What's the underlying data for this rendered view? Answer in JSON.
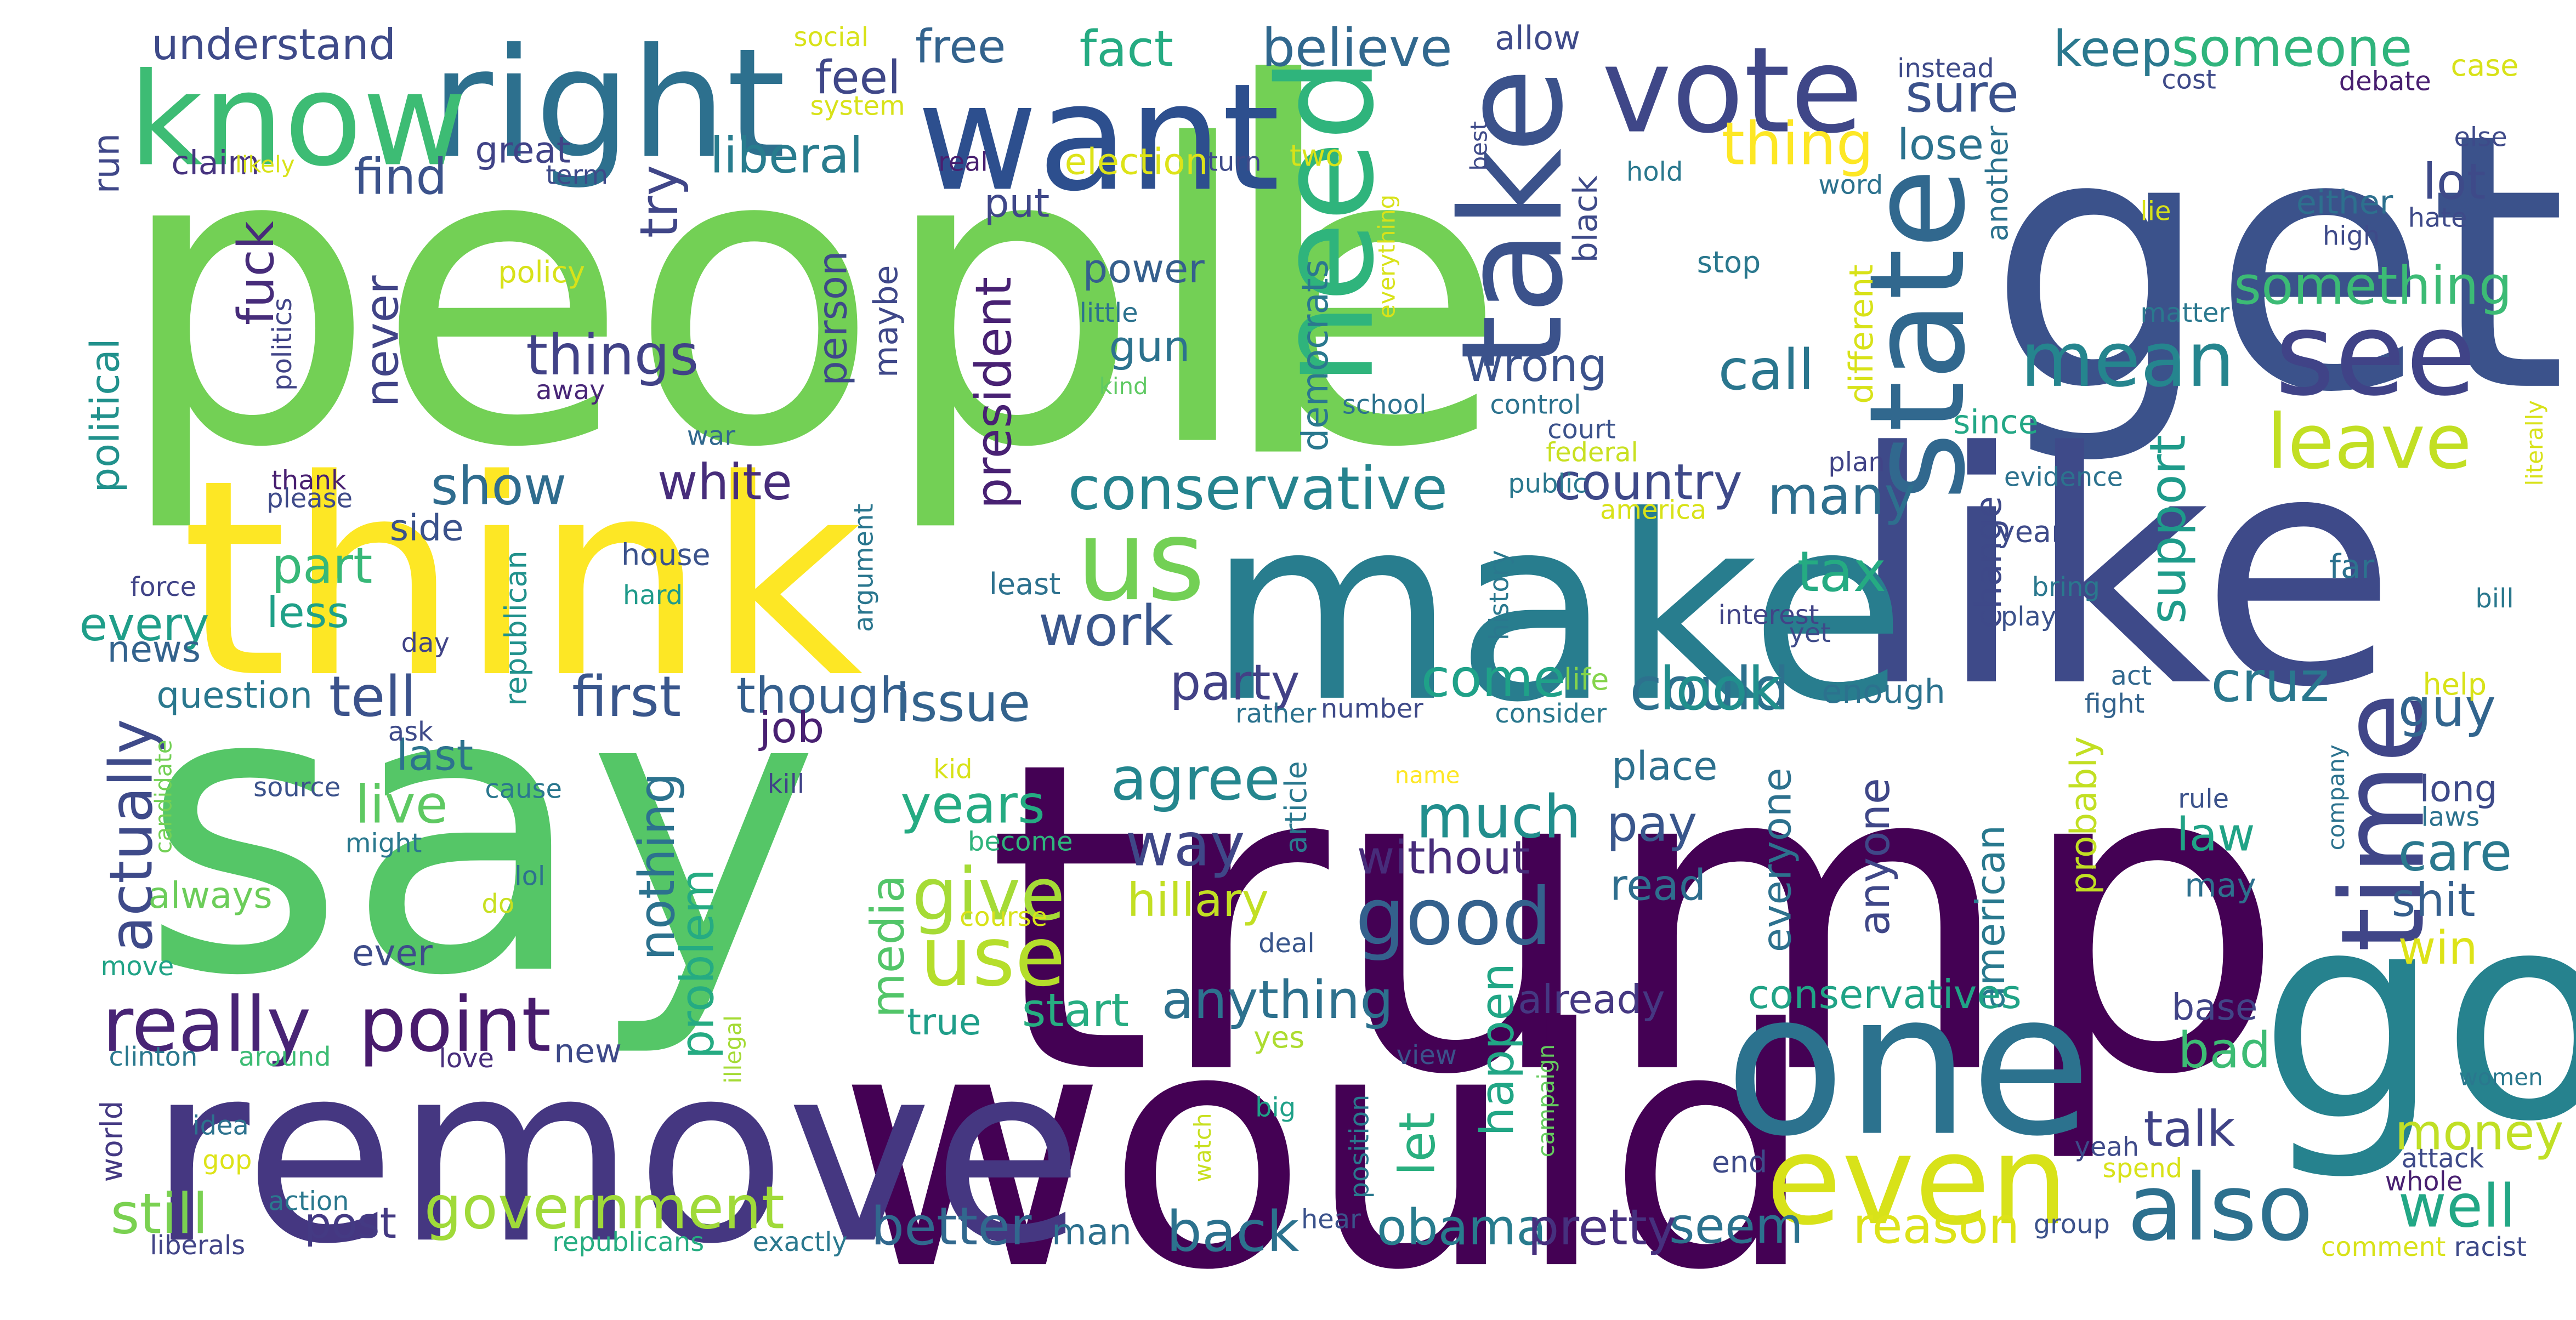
{
  "words": [
    {
      "t": "people",
      "c": "#73d055"
    },
    {
      "t": "trump",
      "c": "#440154"
    },
    {
      "t": "say",
      "c": "#55c667"
    },
    {
      "t": "get",
      "c": "#3b528b"
    },
    {
      "t": "like",
      "c": "#3e4a89"
    },
    {
      "t": "l",
      "c": "#73d055"
    },
    {
      "t": "think",
      "c": "#fde725"
    },
    {
      "t": "would",
      "c": "#440154"
    },
    {
      "t": "make",
      "c": "#287d8e"
    },
    {
      "t": "go",
      "c": "#26828e"
    },
    {
      "t": "remove",
      "c": "#453781"
    },
    {
      "t": "right",
      "c": "#2d708e"
    },
    {
      "t": "want",
      "c": "#2d4f8e"
    },
    {
      "t": "know",
      "c": "#3dbc74"
    },
    {
      "t": "one",
      "c": "#2c728e"
    },
    {
      "t": "even",
      "c": "#d8e219"
    },
    {
      "t": "vote",
      "c": "#3f4788"
    },
    {
      "t": "see",
      "c": "#404387"
    },
    {
      "t": "take",
      "c": "#3b528b"
    },
    {
      "t": "state",
      "c": "#31688e"
    },
    {
      "t": "need",
      "c": "#2fb47c"
    },
    {
      "t": "time",
      "c": "#404688"
    },
    {
      "t": "us",
      "c": "#73d055"
    },
    {
      "t": "also",
      "c": "#2d708e"
    },
    {
      "t": "use",
      "c": "#b5de2b"
    },
    {
      "t": "good",
      "c": "#34618d"
    },
    {
      "t": "mean",
      "c": "#25858e"
    },
    {
      "t": "leave",
      "c": "#c2df23"
    },
    {
      "t": "point",
      "c": "#481b6d"
    },
    {
      "t": "really",
      "c": "#482475"
    },
    {
      "t": "conservative",
      "c": "#25838e"
    },
    {
      "t": "government",
      "c": "#a0da39"
    },
    {
      "t": "obama",
      "c": "#287c8e"
    },
    {
      "t": "seem",
      "c": "#2c728e"
    },
    {
      "t": "pretty",
      "c": "#46307e"
    },
    {
      "t": "better",
      "c": "#31688e"
    },
    {
      "t": "back",
      "c": "#2c728e"
    },
    {
      "t": "reason",
      "c": "#dde318"
    },
    {
      "t": "well",
      "c": "#22a785"
    },
    {
      "t": "money",
      "c": "#c0df25"
    },
    {
      "t": "talk",
      "c": "#404387"
    },
    {
      "t": "still",
      "c": "#7ad151"
    },
    {
      "t": "post",
      "c": "#443a83"
    },
    {
      "t": "could",
      "c": "#2d718e"
    },
    {
      "t": "look",
      "c": "#218f8d"
    },
    {
      "t": "come",
      "c": "#1fa188"
    },
    {
      "t": "party",
      "c": "#424186"
    },
    {
      "t": "tell",
      "c": "#3b528b"
    },
    {
      "t": "first",
      "c": "#39568c"
    },
    {
      "t": "though",
      "c": "#355f8d"
    },
    {
      "t": "issue",
      "c": "#33638d"
    },
    {
      "t": "way",
      "c": "#3f4788"
    },
    {
      "t": "much",
      "c": "#218e8d"
    },
    {
      "t": "agree",
      "c": "#24868e"
    },
    {
      "t": "years",
      "c": "#25ab82"
    },
    {
      "t": "give",
      "c": "#a5db36"
    },
    {
      "t": "live",
      "c": "#5ec962"
    },
    {
      "t": "actually",
      "c": "#3e4a89"
    },
    {
      "t": "things",
      "c": "#414287"
    },
    {
      "t": "white",
      "c": "#472d7b"
    },
    {
      "t": "show",
      "c": "#2f6c8e"
    },
    {
      "t": "work",
      "c": "#39568c"
    },
    {
      "t": "country",
      "c": "#3e4989"
    },
    {
      "t": "many",
      "c": "#2e6f8e"
    },
    {
      "t": "tax",
      "c": "#25ab82"
    },
    {
      "t": "cruz",
      "c": "#2a788e"
    },
    {
      "t": "guy",
      "c": "#32658e"
    },
    {
      "t": "care",
      "c": "#2a788e"
    },
    {
      "t": "law",
      "c": "#20a386"
    },
    {
      "t": "shit",
      "c": "#355f8d"
    },
    {
      "t": "bad",
      "c": "#3dbc74"
    },
    {
      "t": "win",
      "c": "#dde318"
    },
    {
      "t": "something",
      "c": "#3cbb75"
    },
    {
      "t": "support",
      "c": "#1e9b8a"
    },
    {
      "t": "call",
      "c": "#2a768e"
    },
    {
      "t": "wrong",
      "c": "#3b528b"
    },
    {
      "t": "thing",
      "c": "#fde725"
    },
    {
      "t": "lose",
      "c": "#2c728e"
    },
    {
      "t": "sure",
      "c": "#3b528b"
    },
    {
      "t": "keep",
      "c": "#2a788e"
    },
    {
      "t": "someone",
      "c": "#2fb47c"
    },
    {
      "t": "believe",
      "c": "#31688e"
    },
    {
      "t": "fact",
      "c": "#25ab82"
    },
    {
      "t": "free",
      "c": "#33638d"
    },
    {
      "t": "feel",
      "c": "#3f4788"
    },
    {
      "t": "liberal",
      "c": "#287c8e"
    },
    {
      "t": "find",
      "c": "#3b528b"
    },
    {
      "t": "try",
      "c": "#404688"
    },
    {
      "t": "understand",
      "c": "#3e4a89"
    },
    {
      "t": "great",
      "c": "#404387"
    },
    {
      "t": "claim",
      "c": "#46337f"
    },
    {
      "t": "political",
      "c": "#21918c"
    },
    {
      "t": "run",
      "c": "#3f4788"
    },
    {
      "t": "fuck",
      "c": "#472c7a"
    },
    {
      "t": "never",
      "c": "#414487"
    },
    {
      "t": "part",
      "c": "#37b878"
    },
    {
      "t": "less",
      "c": "#1fa088"
    },
    {
      "t": "every",
      "c": "#1f9e89"
    },
    {
      "t": "news",
      "c": "#33638d"
    },
    {
      "t": "question",
      "c": "#2a788e"
    },
    {
      "t": "side",
      "c": "#3b528b"
    },
    {
      "t": "last",
      "c": "#2c728e"
    },
    {
      "t": "always",
      "c": "#6ccd5a"
    },
    {
      "t": "ever",
      "c": "#3e4c8a"
    },
    {
      "t": "nothing",
      "c": "#2c728e"
    },
    {
      "t": "problem",
      "c": "#25ab82"
    },
    {
      "t": "new",
      "c": "#3e4a89"
    },
    {
      "t": "job",
      "c": "#482071"
    },
    {
      "t": "media",
      "c": "#52c569"
    },
    {
      "t": "start",
      "c": "#27ad81"
    },
    {
      "t": "true",
      "c": "#1f9e89"
    },
    {
      "t": "anything",
      "c": "#2d718e"
    },
    {
      "t": "hillary",
      "c": "#c2df23"
    },
    {
      "t": "happen",
      "c": "#21a685"
    },
    {
      "t": "let",
      "c": "#29af7f"
    },
    {
      "t": "without",
      "c": "#472c7a"
    },
    {
      "t": "pay",
      "c": "#39568c"
    },
    {
      "t": "read",
      "c": "#2e6e8e"
    },
    {
      "t": "place",
      "c": "#2d708e"
    },
    {
      "t": "everyone",
      "c": "#2d718e"
    },
    {
      "t": "anyone",
      "c": "#3f4788"
    },
    {
      "t": "american",
      "c": "#29798e"
    },
    {
      "t": "probably",
      "c": "#c2df23"
    },
    {
      "t": "already",
      "c": "#453882"
    },
    {
      "t": "conservatives",
      "c": "#20a386"
    },
    {
      "t": "base",
      "c": "#414487"
    },
    {
      "t": "may",
      "c": "#2d708e"
    },
    {
      "t": "long",
      "c": "#3e4a89"
    },
    {
      "t": "president",
      "c": "#482173"
    },
    {
      "t": "person",
      "c": "#3e4989"
    },
    {
      "t": "maybe",
      "c": "#3f4889"
    },
    {
      "t": "put",
      "c": "#3f4788"
    },
    {
      "t": "power",
      "c": "#355f8d"
    },
    {
      "t": "gun",
      "c": "#2c728e"
    },
    {
      "t": "democrats",
      "c": "#2a788e"
    },
    {
      "t": "election",
      "c": "#dde318"
    },
    {
      "t": "politics",
      "c": "#414487"
    },
    {
      "t": "policy",
      "c": "#d8e219"
    },
    {
      "t": "away",
      "c": "#482677"
    },
    {
      "t": "house",
      "c": "#3b528b"
    },
    {
      "t": "hard",
      "c": "#1f9a8a"
    },
    {
      "t": "republican",
      "c": "#21918c"
    },
    {
      "t": "argument",
      "c": "#2a768e"
    },
    {
      "t": "thank",
      "c": "#481f70"
    },
    {
      "t": "please",
      "c": "#3e4a89"
    },
    {
      "t": "force",
      "c": "#404387"
    },
    {
      "t": "day",
      "c": "#414487"
    },
    {
      "t": "war",
      "c": "#31688e"
    },
    {
      "t": "least",
      "c": "#2d718e"
    },
    {
      "t": "ask",
      "c": "#3e4a89"
    },
    {
      "t": "source",
      "c": "#3b528b"
    },
    {
      "t": "cause",
      "c": "#2a778e"
    },
    {
      "t": "might",
      "c": "#2a788e"
    },
    {
      "t": "kill",
      "c": "#404387"
    },
    {
      "t": "lol",
      "c": "#2d718e"
    },
    {
      "t": "do",
      "c": "#c8e020"
    },
    {
      "t": "candidate",
      "c": "#73d055"
    },
    {
      "t": "move",
      "c": "#20a386"
    },
    {
      "t": "clinton",
      "c": "#2a788e"
    },
    {
      "t": "around",
      "c": "#3dbc74"
    },
    {
      "t": "love",
      "c": "#472d7b"
    },
    {
      "t": "world",
      "c": "#443983"
    },
    {
      "t": "idea",
      "c": "#2c728e"
    },
    {
      "t": "gop",
      "c": "#dde318"
    },
    {
      "t": "action",
      "c": "#2a788e"
    },
    {
      "t": "liberals",
      "c": "#414487"
    },
    {
      "t": "republicans",
      "c": "#26ad81"
    },
    {
      "t": "exactly",
      "c": "#2a788e"
    },
    {
      "t": "man",
      "c": "#2d708e"
    },
    {
      "t": "kid",
      "c": "#d8e219"
    },
    {
      "t": "become",
      "c": "#2fb47c"
    },
    {
      "t": "course",
      "c": "#d8e219"
    },
    {
      "t": "illegal",
      "c": "#a5db36"
    },
    {
      "t": "deal",
      "c": "#39568c"
    },
    {
      "t": "yes",
      "c": "#addc30"
    },
    {
      "t": "watch",
      "c": "#c8e020"
    },
    {
      "t": "big",
      "c": "#1fa188"
    },
    {
      "t": "article",
      "c": "#2a788e"
    },
    {
      "t": "name",
      "c": "#fde725"
    },
    {
      "t": "position",
      "c": "#2a788e"
    },
    {
      "t": "campaign",
      "c": "#65cb5e"
    },
    {
      "t": "view",
      "c": "#3b528b"
    },
    {
      "t": "hear",
      "c": "#3b528b"
    },
    {
      "t": "rather",
      "c": "#2c728e"
    },
    {
      "t": "number",
      "c": "#3e4a89"
    },
    {
      "t": "consider",
      "c": "#2a788e"
    },
    {
      "t": "life",
      "c": "#84d44b"
    },
    {
      "t": "enough",
      "c": "#2c728e"
    },
    {
      "t": "act",
      "c": "#31688e"
    },
    {
      "t": "fight",
      "c": "#33638d"
    },
    {
      "t": "help",
      "c": "#d8e219"
    },
    {
      "t": "company",
      "c": "#2c728e"
    },
    {
      "t": "laws",
      "c": "#2c728e"
    },
    {
      "t": "rule",
      "c": "#3b528b"
    },
    {
      "t": "end",
      "c": "#3e4a89"
    },
    {
      "t": "yeah",
      "c": "#3e4a89"
    },
    {
      "t": "spend",
      "c": "#d8e219"
    },
    {
      "t": "attack",
      "c": "#3e4a89"
    },
    {
      "t": "whole",
      "c": "#481f70"
    },
    {
      "t": "group",
      "c": "#3b528b"
    },
    {
      "t": "comment",
      "c": "#d8e219"
    },
    {
      "t": "racist",
      "c": "#3e4a89"
    },
    {
      "t": "women",
      "c": "#2a788e"
    },
    {
      "t": "interest",
      "c": "#414487"
    },
    {
      "t": "yet",
      "c": "#3e4a89"
    },
    {
      "t": "plan",
      "c": "#414487"
    },
    {
      "t": "america",
      "c": "#d8e219"
    },
    {
      "t": "evidence",
      "c": "#2c728e"
    },
    {
      "t": "bring",
      "c": "#2a788e"
    },
    {
      "t": "play",
      "c": "#3b528b"
    },
    {
      "t": "far",
      "c": "#2c728e"
    },
    {
      "t": "year",
      "c": "#3e4a89"
    },
    {
      "t": "change",
      "c": "#3e4989"
    },
    {
      "t": "since",
      "c": "#22a785"
    },
    {
      "t": "history",
      "c": "#2a788e"
    },
    {
      "t": "court",
      "c": "#3b528b"
    },
    {
      "t": "federal",
      "c": "#c8e020"
    },
    {
      "t": "control",
      "c": "#2c728e"
    },
    {
      "t": "public",
      "c": "#2a788e"
    },
    {
      "t": "school",
      "c": "#2c728e"
    },
    {
      "t": "stop",
      "c": "#2a788e"
    },
    {
      "t": "black",
      "c": "#3e4a89"
    },
    {
      "t": "different",
      "c": "#d8e219"
    },
    {
      "t": "matter",
      "c": "#2a788e"
    },
    {
      "t": "another",
      "c": "#2c728e"
    },
    {
      "t": "either",
      "c": "#2d708e"
    },
    {
      "t": "high",
      "c": "#3e4a89"
    },
    {
      "t": "lie",
      "c": "#d8e219"
    },
    {
      "t": "hate",
      "c": "#3e4a89"
    },
    {
      "t": "lot",
      "c": "#3e4a89"
    },
    {
      "t": "word",
      "c": "#2c728e"
    },
    {
      "t": "hold",
      "c": "#2a788e"
    },
    {
      "t": "best",
      "c": "#3e4a89"
    },
    {
      "t": "everything",
      "c": "#d8e219"
    },
    {
      "t": "two",
      "c": "#d8e219"
    },
    {
      "t": "turn",
      "c": "#3e4a89"
    },
    {
      "t": "real",
      "c": "#481f70"
    },
    {
      "t": "allow",
      "c": "#3e4a89"
    },
    {
      "t": "instead",
      "c": "#3e4a89"
    },
    {
      "t": "cost",
      "c": "#3e4a89"
    },
    {
      "t": "debate",
      "c": "#481f70"
    },
    {
      "t": "case",
      "c": "#d8e219"
    },
    {
      "t": "else",
      "c": "#3e4a89"
    },
    {
      "t": "social",
      "c": "#d8e219"
    },
    {
      "t": "system",
      "c": "#d8e219"
    },
    {
      "t": "term",
      "c": "#3e4a89"
    },
    {
      "t": "likely",
      "c": "#d8e219"
    },
    {
      "t": "little",
      "c": "#2c728e"
    },
    {
      "t": "kind",
      "c": "#5ec962"
    },
    {
      "t": "literally",
      "c": "#d8e219"
    },
    {
      "t": "bill",
      "c": "#2a788e"
    }
  ]
}
